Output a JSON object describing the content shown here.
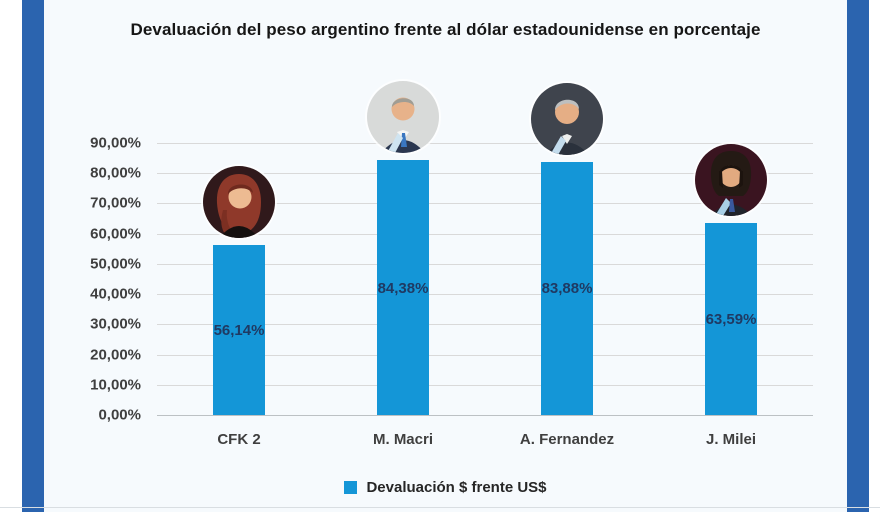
{
  "chart_data": {
    "type": "bar",
    "title": "Devaluación del peso argentino frente al dólar estadounidense en porcentaje",
    "categories": [
      "CFK 2",
      "M. Macri",
      "A. Fernandez",
      "J. Milei"
    ],
    "values": [
      56.14,
      84.38,
      83.88,
      63.59
    ],
    "value_labels": [
      "56,14%",
      "84,38%",
      "83,88%",
      "63,59%"
    ],
    "series": [
      {
        "name": "Devaluación $ frente US$",
        "values": [
          56.14,
          84.38,
          83.88,
          63.59
        ]
      }
    ],
    "legend": {
      "label": "Devaluación $ frente US$",
      "position": "bottom"
    },
    "xlabel": "",
    "ylabel": "",
    "ylim": [
      0,
      90
    ],
    "ytick_labels": [
      "0,00%",
      "10,00%",
      "20,00%",
      "30,00%",
      "40,00%",
      "50,00%",
      "60,00%",
      "70,00%",
      "80,00%",
      "90,00%"
    ],
    "grid": true,
    "value_label_position": "inside-center",
    "avatars": [
      {
        "name": "avatar-cfk-2",
        "style": "cfk"
      },
      {
        "name": "avatar-macri",
        "style": "macri"
      },
      {
        "name": "avatar-fernandez",
        "style": "fernandez"
      },
      {
        "name": "avatar-milei",
        "style": "milei"
      }
    ]
  },
  "colors": {
    "bar": "#1496d7",
    "value_label": "#1f3a63",
    "axis_text": "#3f3f3f",
    "gridline": "#d9d9d9",
    "frame_stripe": "#2b64af",
    "panel_bg": "#f6fafd",
    "title_text": "#161616"
  }
}
